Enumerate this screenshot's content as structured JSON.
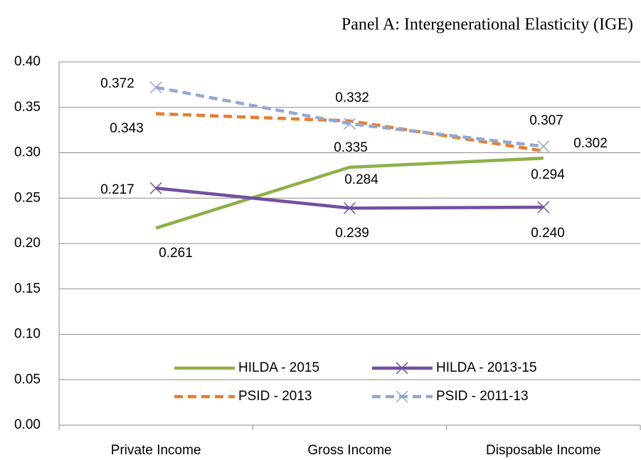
{
  "chart_data": {
    "type": "line",
    "title": "Panel A: Intergenerational Elasticity (IGE)",
    "categories": [
      "Private Income",
      "Gross Income",
      "Disposable Income"
    ],
    "series": [
      {
        "name": "HILDA - 2015",
        "color": "#8db04a",
        "dash": false,
        "marker": "none",
        "values": [
          0.217,
          0.284,
          0.294
        ],
        "value_labels": [
          "0.217",
          "0.284",
          "0.294"
        ]
      },
      {
        "name": "HILDA - 2013-15",
        "color": "#7150a0",
        "dash": false,
        "marker": "x",
        "values": [
          0.261,
          0.239,
          0.24
        ],
        "value_labels": [
          "0.261",
          "0.239",
          "0.240"
        ]
      },
      {
        "name": "PSID - 2013",
        "color": "#e87d2f",
        "dash": true,
        "marker": "none",
        "values": [
          0.343,
          0.335,
          0.302
        ],
        "value_labels": [
          "0.343",
          "0.335",
          "0.302"
        ]
      },
      {
        "name": "PSID - 2011-13",
        "color": "#91a9d4",
        "dash": true,
        "marker": "x",
        "values": [
          0.372,
          0.332,
          0.307
        ],
        "value_labels": [
          "0.372",
          "0.332",
          "0.307"
        ]
      }
    ],
    "ylim": [
      0,
      0.4
    ],
    "yticks": [
      {
        "value": 0,
        "label": "0.00"
      },
      {
        "value": 0.05,
        "label": "0.05"
      },
      {
        "value": 0.1,
        "label": "0.10"
      },
      {
        "value": 0.15,
        "label": "0.15"
      },
      {
        "value": 0.2,
        "label": "0.20"
      },
      {
        "value": 0.25,
        "label": "0.25"
      },
      {
        "value": 0.3,
        "label": "0.30"
      },
      {
        "value": 0.35,
        "label": "0.35"
      },
      {
        "value": 0.4,
        "label": "0.40"
      }
    ],
    "grid": true,
    "legend": "bottom"
  }
}
